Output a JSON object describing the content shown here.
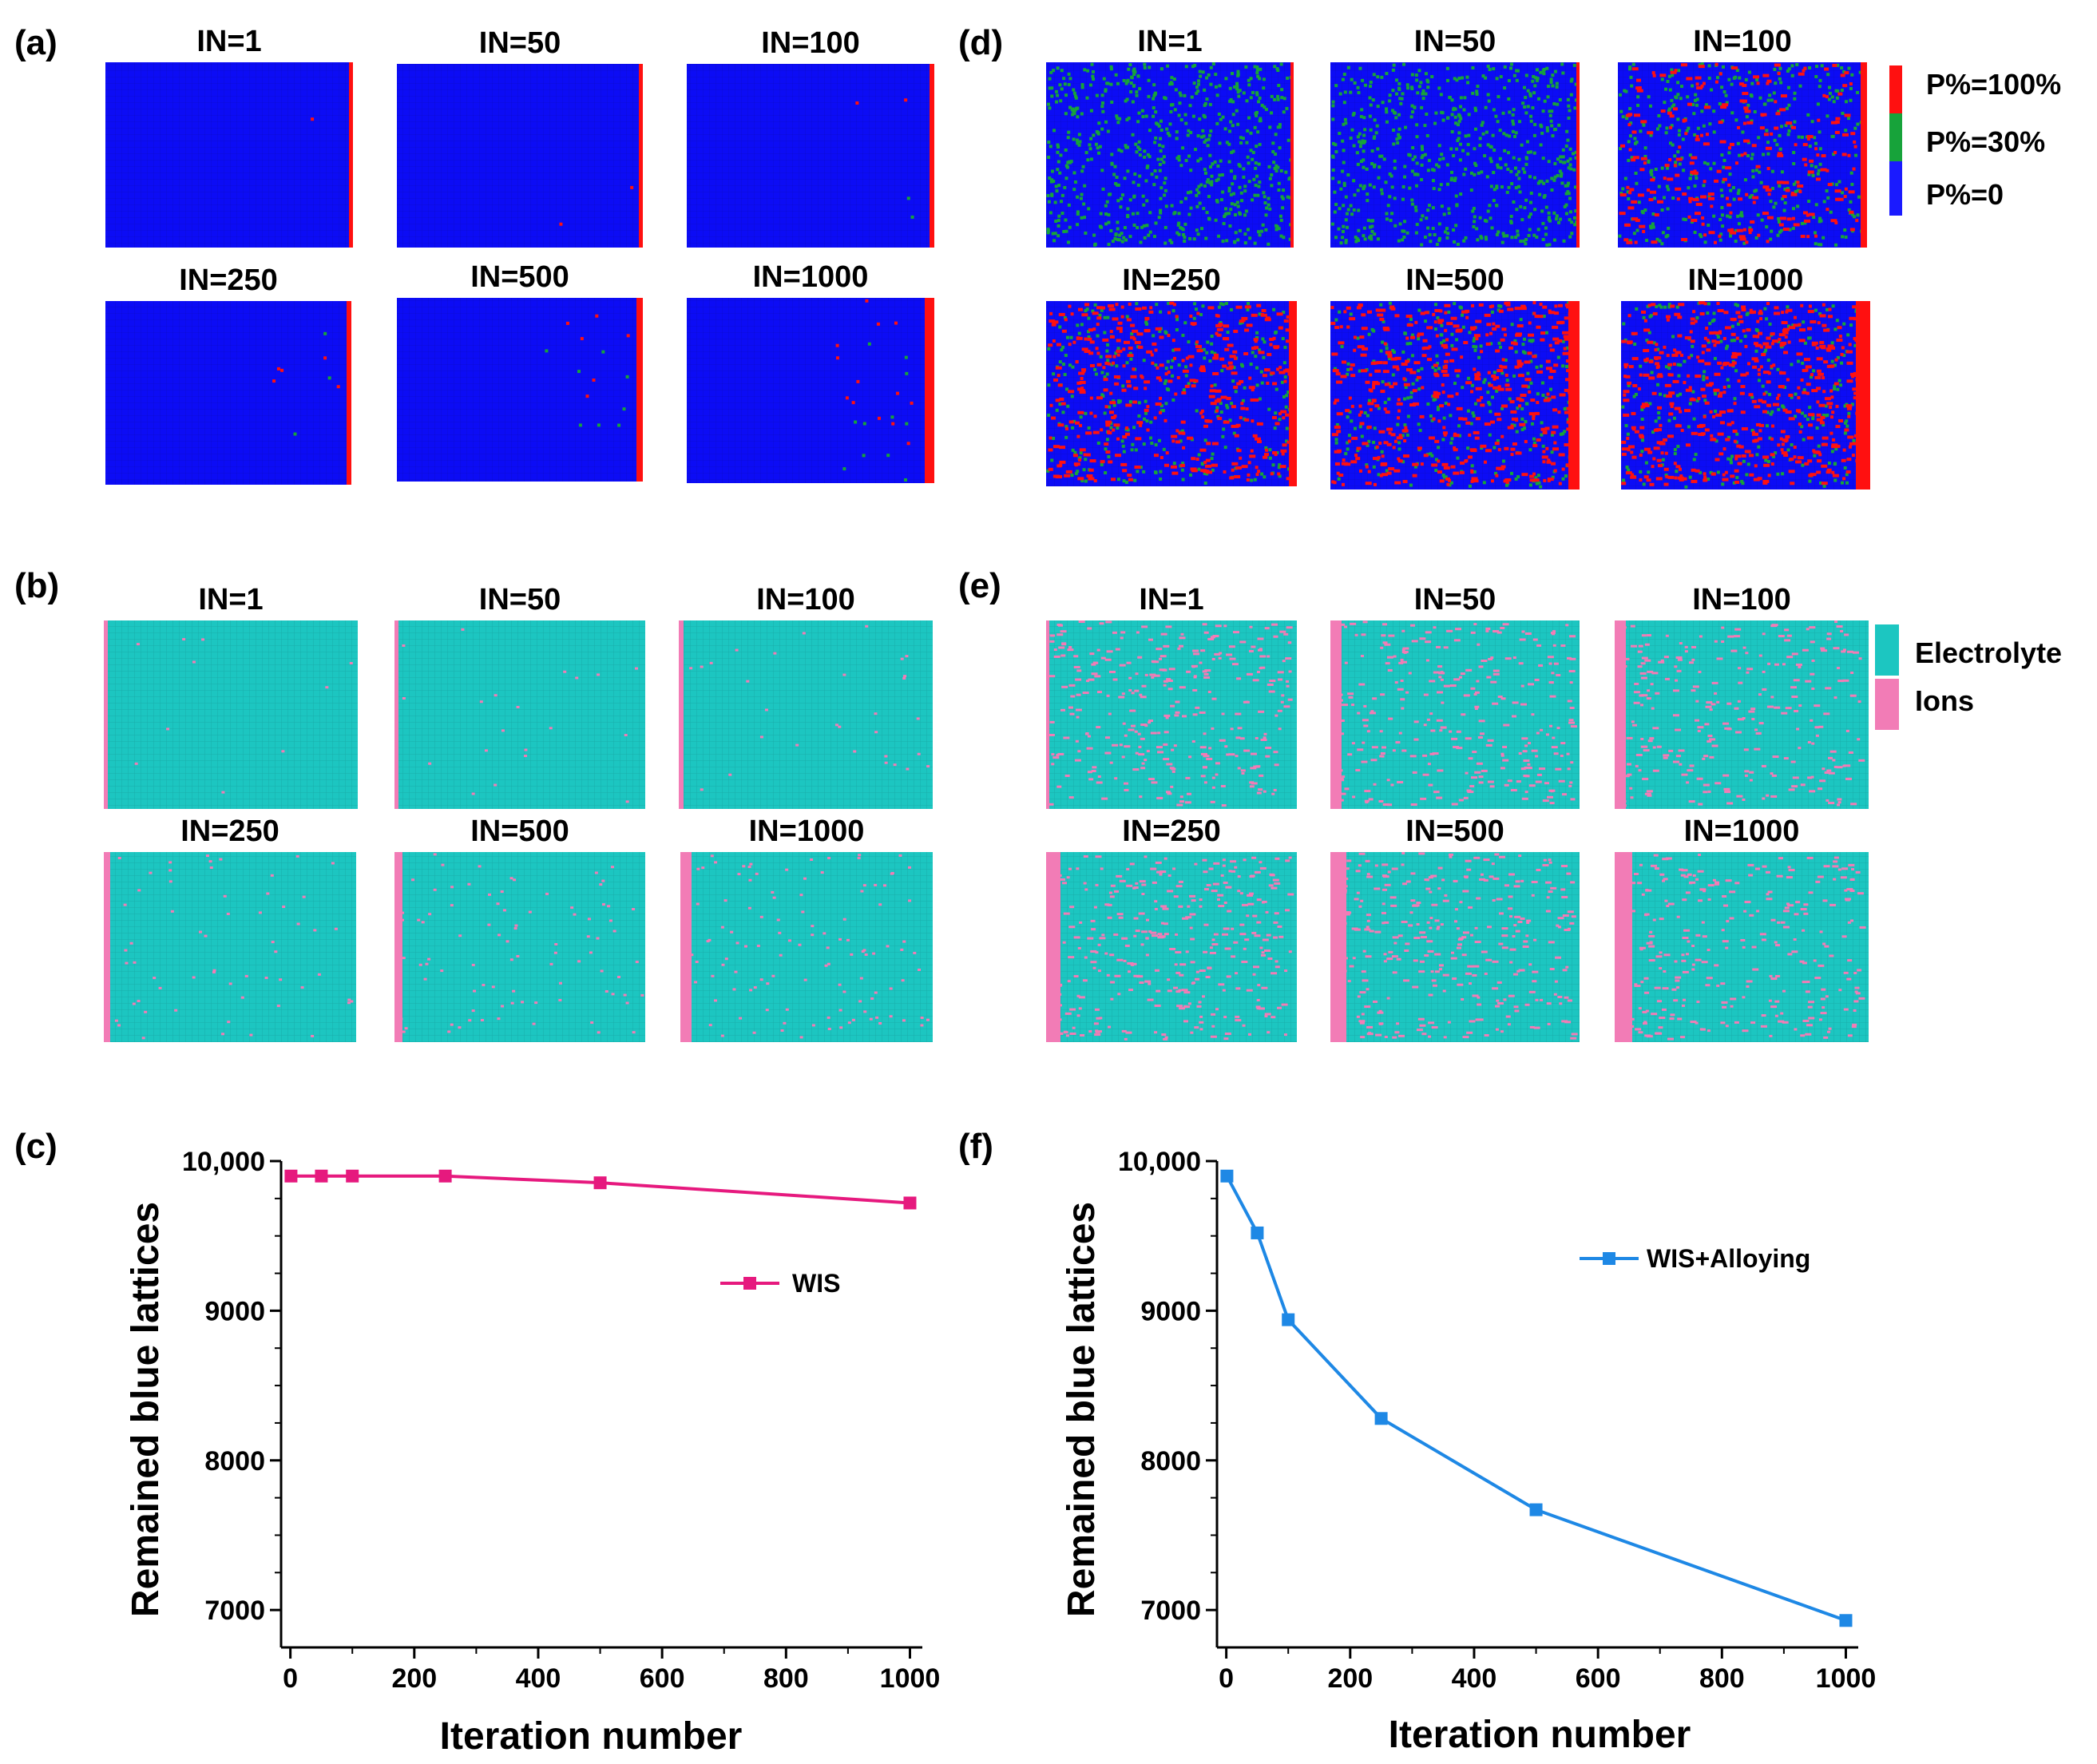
{
  "panel_labels": [
    "(a)",
    "(b)",
    "(c)",
    "(d)",
    "(e)",
    "(f)"
  ],
  "iteration_labels": [
    "IN=1",
    "IN=50",
    "IN=100",
    "IN=250",
    "IN=500",
    "IN=1000"
  ],
  "legend_phase": {
    "entries": [
      {
        "label": "P%=100%",
        "color": "#ff1010"
      },
      {
        "label": "P%=30%",
        "color": "#17a33a"
      },
      {
        "label": "P%=0",
        "color": "#1a1aff"
      }
    ]
  },
  "legend_electrolyte": {
    "entries": [
      {
        "label": "Electrolyte",
        "color": "#1cc6c1"
      },
      {
        "label": "Ions",
        "color": "#f27cb6"
      }
    ]
  },
  "colors": {
    "blue": "#0c0cf5",
    "red": "#ff1010",
    "green": "#17a33a",
    "teal": "#1cc6c1",
    "pink": "#f27cb6",
    "wis_line": "#e6197e",
    "alloy_line": "#1e88e5"
  },
  "chart_data": [
    {
      "type": "line",
      "panel": "(c)",
      "title": "",
      "xlabel": "Iteration number",
      "ylabel": "Remained blue lattices",
      "xlim": [
        -15,
        1020
      ],
      "ylim": [
        6750,
        10000
      ],
      "xticks": [
        0,
        200,
        400,
        600,
        800,
        1000
      ],
      "xtick_labels": [
        "0",
        "200",
        "400",
        "600",
        "800",
        "1000"
      ],
      "yticks": [
        7000,
        8000,
        9000,
        10000
      ],
      "ytick_labels": [
        "7000",
        "8000",
        "9000",
        "10,000"
      ],
      "series": [
        {
          "name": "WIS",
          "color": "#e6197e",
          "x": [
            1,
            50,
            100,
            250,
            500,
            1000
          ],
          "y": [
            9900,
            9900,
            9900,
            9900,
            9855,
            9720
          ]
        }
      ],
      "legend": "center-right"
    },
    {
      "type": "line",
      "panel": "(f)",
      "title": "",
      "xlabel": "Iteration number",
      "ylabel": "Remained blue lattices",
      "xlim": [
        -15,
        1020
      ],
      "ylim": [
        6750,
        10000
      ],
      "xticks": [
        0,
        200,
        400,
        600,
        800,
        1000
      ],
      "xtick_labels": [
        "0",
        "200",
        "400",
        "600",
        "800",
        "1000"
      ],
      "yticks": [
        7000,
        8000,
        9000,
        10000
      ],
      "ytick_labels": [
        "7000",
        "8000",
        "9000",
        "10,000"
      ],
      "series": [
        {
          "name": "WIS+Alloying",
          "color": "#1e88e5",
          "x": [
            1,
            50,
            100,
            250,
            500,
            1000
          ],
          "y": [
            9900,
            9520,
            8940,
            8280,
            7670,
            6930
          ]
        }
      ],
      "legend": "top-right"
    }
  ]
}
